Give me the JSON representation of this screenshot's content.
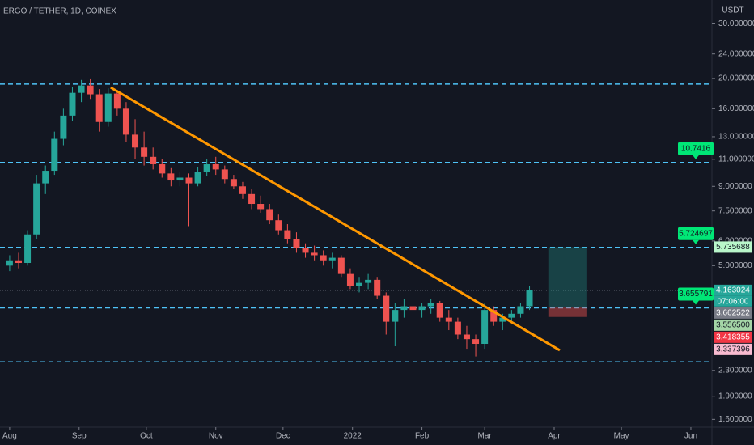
{
  "chart_data": {
    "type": "candlestick",
    "title": "ERGO / TETHER, 1D, COINEX",
    "currency": "USDT",
    "log_scale": true,
    "up_color": "#26a69a",
    "down_color": "#ef5350",
    "ylim": [
      1.51,
      35.8
    ],
    "yticks": [
      {
        "value": 30,
        "label": "30.000000"
      },
      {
        "value": 24,
        "label": "24.000000"
      },
      {
        "value": 20,
        "label": "20.000000"
      },
      {
        "value": 16,
        "label": "16.000000"
      },
      {
        "value": 13,
        "label": "13.000000"
      },
      {
        "value": 11,
        "label": "11.000000"
      },
      {
        "value": 9,
        "label": "9.000000"
      },
      {
        "value": 7.5,
        "label": "7.500000"
      },
      {
        "value": 6,
        "label": "6.000000"
      },
      {
        "value": 5,
        "label": "5.000000"
      },
      {
        "value": 2.3,
        "label": "2.300000"
      },
      {
        "value": 1.9,
        "label": "1.900000"
      },
      {
        "value": 1.6,
        "label": "1.600000"
      }
    ],
    "xlim": [
      -4.3,
      313.4
    ],
    "xticks": [
      {
        "value": 0,
        "label": "Aug"
      },
      {
        "value": 31,
        "label": "Sep"
      },
      {
        "value": 61,
        "label": "Oct"
      },
      {
        "value": 92,
        "label": "Nov"
      },
      {
        "value": 122,
        "label": "Dec"
      },
      {
        "value": 153,
        "label": "2022"
      },
      {
        "value": 184,
        "label": "Feb"
      },
      {
        "value": 212,
        "label": "Mar"
      },
      {
        "value": 243,
        "label": "Apr"
      },
      {
        "value": 273,
        "label": "May"
      },
      {
        "value": 304,
        "label": "Jun"
      }
    ],
    "candles": [
      {
        "x": 0,
        "o": 5.0,
        "h": 5.4,
        "l": 4.8,
        "c": 5.2
      },
      {
        "x": 4,
        "o": 5.2,
        "h": 5.5,
        "l": 4.9,
        "c": 5.1
      },
      {
        "x": 8,
        "o": 5.1,
        "h": 6.5,
        "l": 5.0,
        "c": 6.3
      },
      {
        "x": 12,
        "o": 6.3,
        "h": 9.8,
        "l": 6.1,
        "c": 9.2
      },
      {
        "x": 16,
        "o": 9.2,
        "h": 10.5,
        "l": 8.5,
        "c": 10.1
      },
      {
        "x": 20,
        "o": 10.1,
        "h": 13.5,
        "l": 9.8,
        "c": 12.8
      },
      {
        "x": 24,
        "o": 12.8,
        "h": 16.0,
        "l": 12.2,
        "c": 15.2
      },
      {
        "x": 28,
        "o": 15.2,
        "h": 18.8,
        "l": 14.6,
        "c": 18.0
      },
      {
        "x": 32,
        "o": 18.0,
        "h": 19.8,
        "l": 16.8,
        "c": 19.0
      },
      {
        "x": 36,
        "o": 19.0,
        "h": 19.9,
        "l": 17.2,
        "c": 17.8
      },
      {
        "x": 40,
        "o": 17.8,
        "h": 18.5,
        "l": 13.5,
        "c": 14.5
      },
      {
        "x": 44,
        "o": 14.5,
        "h": 18.6,
        "l": 14.0,
        "c": 17.9
      },
      {
        "x": 48,
        "o": 17.9,
        "h": 18.4,
        "l": 15.2,
        "c": 16.0
      },
      {
        "x": 52,
        "o": 16.0,
        "h": 16.8,
        "l": 12.5,
        "c": 13.2
      },
      {
        "x": 56,
        "o": 13.2,
        "h": 14.8,
        "l": 11.0,
        "c": 12.0
      },
      {
        "x": 60,
        "o": 12.0,
        "h": 13.5,
        "l": 10.5,
        "c": 11.2
      },
      {
        "x": 64,
        "o": 11.2,
        "h": 12.0,
        "l": 10.2,
        "c": 10.6
      },
      {
        "x": 68,
        "o": 10.6,
        "h": 11.0,
        "l": 9.6,
        "c": 9.9
      },
      {
        "x": 72,
        "o": 9.9,
        "h": 10.3,
        "l": 9.0,
        "c": 9.4
      },
      {
        "x": 76,
        "o": 9.4,
        "h": 10.0,
        "l": 9.0,
        "c": 9.6
      },
      {
        "x": 80,
        "o": 9.6,
        "h": 9.9,
        "l": 6.7,
        "c": 9.2
      },
      {
        "x": 84,
        "o": 9.2,
        "h": 10.4,
        "l": 9.0,
        "c": 10.0
      },
      {
        "x": 88,
        "o": 10.0,
        "h": 11.0,
        "l": 9.7,
        "c": 10.6
      },
      {
        "x": 92,
        "o": 10.6,
        "h": 11.2,
        "l": 9.8,
        "c": 10.2
      },
      {
        "x": 96,
        "o": 10.2,
        "h": 10.5,
        "l": 9.2,
        "c": 9.5
      },
      {
        "x": 100,
        "o": 9.5,
        "h": 9.8,
        "l": 8.8,
        "c": 9.0
      },
      {
        "x": 104,
        "o": 9.0,
        "h": 9.3,
        "l": 8.2,
        "c": 8.5
      },
      {
        "x": 108,
        "o": 8.5,
        "h": 8.8,
        "l": 7.6,
        "c": 7.9
      },
      {
        "x": 112,
        "o": 7.9,
        "h": 8.4,
        "l": 7.4,
        "c": 7.6
      },
      {
        "x": 116,
        "o": 7.6,
        "h": 7.9,
        "l": 6.8,
        "c": 7.0
      },
      {
        "x": 120,
        "o": 7.0,
        "h": 7.3,
        "l": 6.3,
        "c": 6.5
      },
      {
        "x": 124,
        "o": 6.5,
        "h": 6.8,
        "l": 5.9,
        "c": 6.1
      },
      {
        "x": 128,
        "o": 6.1,
        "h": 6.4,
        "l": 5.5,
        "c": 5.7
      },
      {
        "x": 132,
        "o": 5.7,
        "h": 5.9,
        "l": 5.3,
        "c": 5.5
      },
      {
        "x": 136,
        "o": 5.5,
        "h": 5.8,
        "l": 5.2,
        "c": 5.4
      },
      {
        "x": 140,
        "o": 5.4,
        "h": 5.6,
        "l": 5.0,
        "c": 5.2
      },
      {
        "x": 144,
        "o": 5.2,
        "h": 5.5,
        "l": 4.9,
        "c": 5.3
      },
      {
        "x": 148,
        "o": 5.3,
        "h": 5.4,
        "l": 4.6,
        "c": 4.7
      },
      {
        "x": 152,
        "o": 4.7,
        "h": 4.9,
        "l": 4.2,
        "c": 4.3
      },
      {
        "x": 156,
        "o": 4.3,
        "h": 4.6,
        "l": 4.1,
        "c": 4.4
      },
      {
        "x": 160,
        "o": 4.4,
        "h": 4.7,
        "l": 4.2,
        "c": 4.5
      },
      {
        "x": 164,
        "o": 4.5,
        "h": 4.6,
        "l": 3.9,
        "c": 4.0
      },
      {
        "x": 168,
        "o": 4.0,
        "h": 4.1,
        "l": 3.0,
        "c": 3.3
      },
      {
        "x": 172,
        "o": 3.3,
        "h": 3.8,
        "l": 2.75,
        "c": 3.6
      },
      {
        "x": 176,
        "o": 3.6,
        "h": 3.9,
        "l": 3.4,
        "c": 3.7
      },
      {
        "x": 180,
        "o": 3.7,
        "h": 3.9,
        "l": 3.4,
        "c": 3.6
      },
      {
        "x": 184,
        "o": 3.6,
        "h": 3.8,
        "l": 3.4,
        "c": 3.7
      },
      {
        "x": 188,
        "o": 3.7,
        "h": 3.9,
        "l": 3.5,
        "c": 3.8
      },
      {
        "x": 192,
        "o": 3.8,
        "h": 3.85,
        "l": 3.3,
        "c": 3.4
      },
      {
        "x": 196,
        "o": 3.4,
        "h": 3.6,
        "l": 3.1,
        "c": 3.3
      },
      {
        "x": 200,
        "o": 3.3,
        "h": 3.4,
        "l": 2.9,
        "c": 3.0
      },
      {
        "x": 204,
        "o": 3.0,
        "h": 3.2,
        "l": 2.7,
        "c": 2.9
      },
      {
        "x": 208,
        "o": 2.9,
        "h": 3.0,
        "l": 2.55,
        "c": 2.8
      },
      {
        "x": 212,
        "o": 2.8,
        "h": 3.8,
        "l": 2.7,
        "c": 3.6
      },
      {
        "x": 216,
        "o": 3.6,
        "h": 3.7,
        "l": 3.2,
        "c": 3.3
      },
      {
        "x": 220,
        "o": 3.3,
        "h": 3.5,
        "l": 3.1,
        "c": 3.4
      },
      {
        "x": 224,
        "o": 3.4,
        "h": 3.6,
        "l": 3.3,
        "c": 3.5
      },
      {
        "x": 228,
        "o": 3.5,
        "h": 3.8,
        "l": 3.4,
        "c": 3.7
      },
      {
        "x": 232,
        "o": 3.7,
        "h": 4.3,
        "l": 3.6,
        "c": 4.16
      }
    ],
    "hlines": [
      19.2,
      10.7416,
      5.724697,
      3.655791,
      2.45
    ],
    "hline_color": "#4fc3f7",
    "callouts": [
      1,
      2,
      3
    ],
    "callout_color": "#00e676",
    "trendline": {
      "x": [
        45.1,
        245.5
      ],
      "y": [
        18.72,
        2.67
      ],
      "color": "#ff9800"
    },
    "position": {
      "x": [
        240.4,
        257.4
      ],
      "entry": 3.662522,
      "target": 5.735688,
      "stop": 3.418355
    },
    "price_tags": [
      {
        "value": 5.735688,
        "color": "#b9f6ca"
      },
      {
        "value": 4.163024,
        "color": "#26a69a"
      },
      {
        "value": 3.662522,
        "color": "#787b86"
      },
      {
        "value": 3.5565,
        "label": "3.556500",
        "color": "#a5d6a7"
      },
      {
        "value": 3.418355,
        "color": "#f23645"
      },
      {
        "value": 3.337396,
        "color": "#f8bbd0"
      }
    ],
    "countdown": "07:06:00"
  }
}
